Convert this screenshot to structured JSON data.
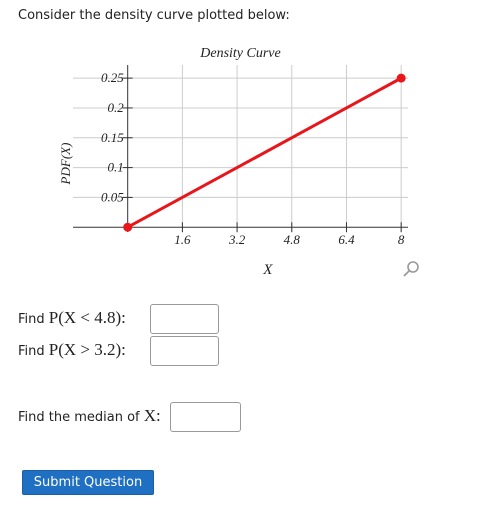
{
  "prompt": "Consider the density curve plotted below:",
  "chart_data": {
    "type": "line",
    "title": "Density Curve",
    "x_label": "X",
    "y_label": "PDF(X)",
    "x": [
      0,
      8
    ],
    "series": [
      {
        "color": "#e8161b",
        "values": [
          0,
          0.25
        ]
      }
    ],
    "xlim": [
      -1.6,
      8.2
    ],
    "ylim": [
      -0.008,
      0.272
    ],
    "xticks": [
      1.6,
      3.2,
      4.8,
      6.4,
      8
    ],
    "yticks": [
      0.05,
      0.1,
      0.15,
      0.2,
      0.25
    ],
    "grid": true
  },
  "questions": [
    {
      "prefix": "Find",
      "math": "P(X < 4.8):"
    },
    {
      "prefix": "Find",
      "math": "P(X > 3.2):"
    },
    {
      "prefix": "Find the median of",
      "math": "X:"
    }
  ],
  "button": "Submit Question"
}
